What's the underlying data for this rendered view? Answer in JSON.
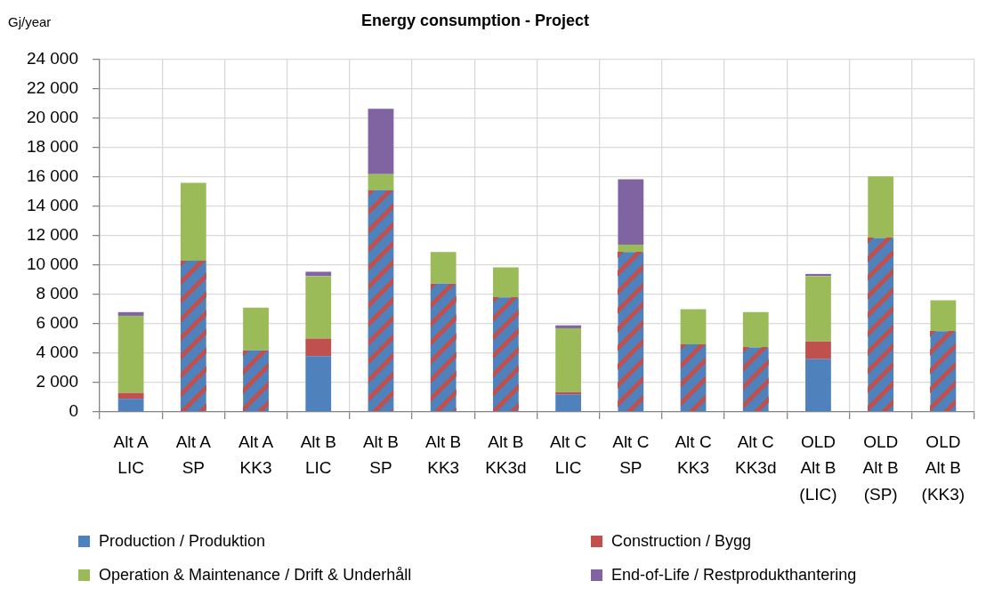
{
  "chart_data": {
    "type": "bar",
    "title": "Energy consumption - Project",
    "ylabel": "Gj/year",
    "categories": [
      "Alt A LIC",
      "Alt A SP",
      "Alt A KK3",
      "Alt B LIC",
      "Alt B SP",
      "Alt B KK3",
      "Alt B KK3d",
      "Alt C LIC",
      "Alt C SP",
      "Alt C KK3",
      "Alt C KK3d",
      "OLD Alt B (LIC)",
      "OLD Alt B (SP)",
      "OLD Alt B (KK3)"
    ],
    "series": [
      {
        "name": "Production / Produktion",
        "color": "#4f81bd",
        "values": [
          900,
          null,
          null,
          3800,
          null,
          null,
          null,
          1200,
          null,
          null,
          null,
          3600,
          null,
          null
        ]
      },
      {
        "name": "Construction / Bygg",
        "color": "#c0504d",
        "values": [
          400,
          null,
          null,
          1200,
          null,
          null,
          null,
          150,
          null,
          null,
          null,
          1200,
          null,
          null
        ]
      },
      {
        "color": "#4f81bd",
        "values": [
          null,
          10300,
          4200,
          null,
          15100,
          8750,
          7800,
          null,
          10900,
          4600,
          4400,
          null,
          11850,
          5500
        ]
      },
      {
        "name": "Operation & Maintenance / Drift & Underhåll",
        "color": "#9bbb59",
        "values": [
          5250,
          5300,
          2900,
          4250,
          1100,
          2150,
          2050,
          4350,
          500,
          2400,
          2400,
          4450,
          4200,
          2100
        ]
      },
      {
        "name": "End-of-Life / Restprodukthantering",
        "color": "#8064a2",
        "values": [
          250,
          null,
          null,
          300,
          4450,
          null,
          null,
          200,
          4450,
          null,
          null,
          150,
          null,
          null
        ]
      }
    ],
    "stacked": true,
    "ylim": [
      0,
      24000
    ],
    "yticks": [
      0,
      {
        "value": 2000,
        "label": "2 000"
      },
      {
        "value": 4000,
        "label": "4 000"
      },
      {
        "value": 6000,
        "label": "6 000"
      },
      {
        "value": 8000,
        "label": "8 000"
      },
      {
        "value": 10000,
        "label": "10 000"
      },
      {
        "value": 12000,
        "label": "12 000"
      },
      {
        "value": 14000,
        "label": "14 000"
      },
      {
        "value": 16000,
        "label": "16 000"
      },
      {
        "value": 18000,
        "label": "18 000"
      },
      {
        "value": 20000,
        "label": "20 000"
      },
      {
        "value": 22000,
        "label": "22 000"
      },
      {
        "value": 24000,
        "label": "24 000"
      }
    ],
    "grid": true,
    "legend": "bottom"
  }
}
